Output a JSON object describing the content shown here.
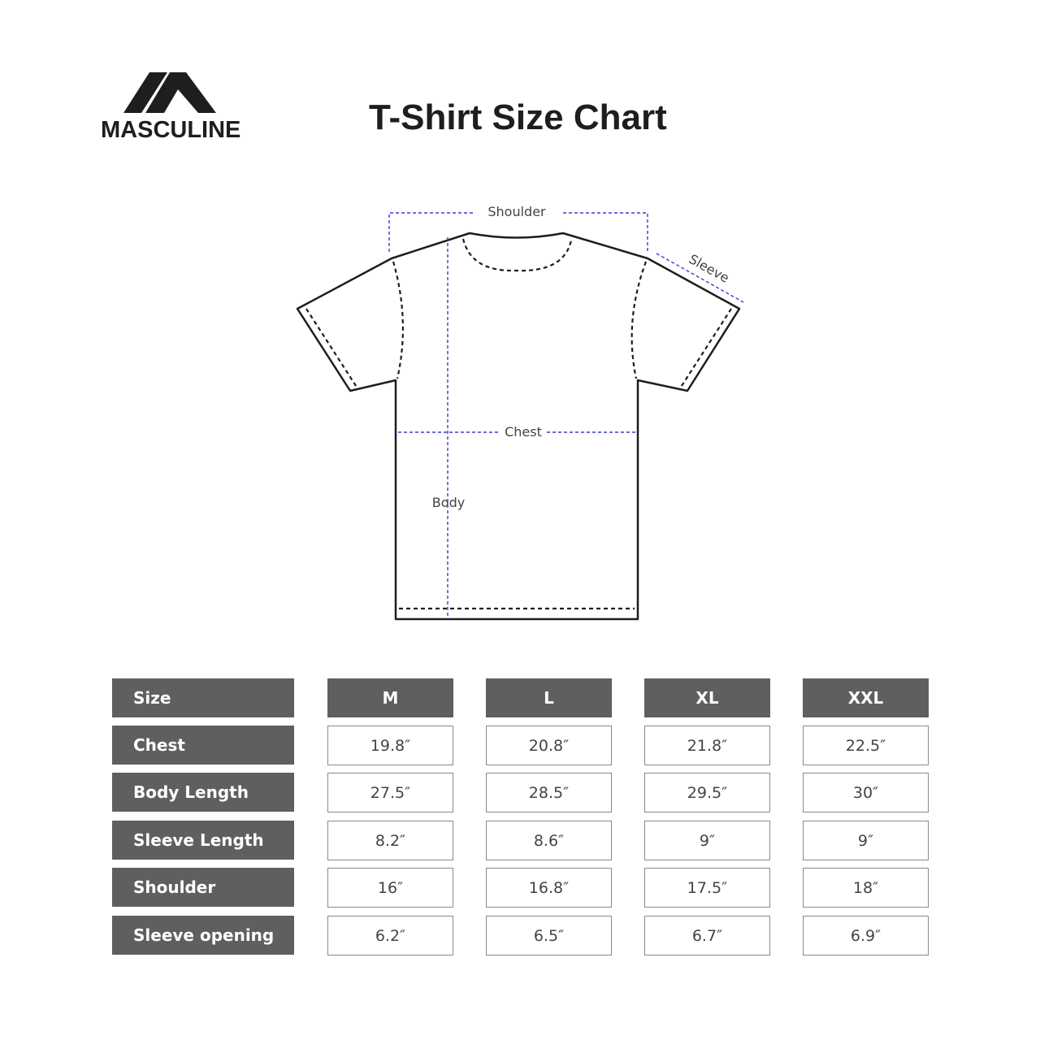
{
  "brand": {
    "name": "MASCULINE",
    "logo_icon": "mountain-m-logo"
  },
  "title": "T-Shirt Size Chart",
  "diagram": {
    "labels": {
      "shoulder": "Shoulder",
      "sleeve": "Sleeve",
      "chest": "Chest",
      "body": "Body"
    },
    "measure_line_color": "#3a3ad6",
    "outline_color": "#1e1e1e"
  },
  "table": {
    "header_label": "Size",
    "sizes": [
      "M",
      "L",
      "XL",
      "XXL"
    ],
    "header_color": "#5f5f5f",
    "rows": [
      {
        "label": "Chest",
        "values": [
          "19.8″",
          "20.8″",
          "21.8″",
          "22.5″"
        ]
      },
      {
        "label": "Body Length",
        "values": [
          "27.5″",
          "28.5″",
          "29.5″",
          "30″"
        ]
      },
      {
        "label": "Sleeve Length",
        "values": [
          "8.2″",
          "8.6″",
          "9″",
          "9″"
        ]
      },
      {
        "label": "Shoulder",
        "values": [
          "16″",
          "16.8″",
          "17.5″",
          "18″"
        ]
      },
      {
        "label": "Sleeve opening",
        "values": [
          "6.2″",
          "6.5″",
          "6.7″",
          "6.9″"
        ]
      }
    ]
  }
}
